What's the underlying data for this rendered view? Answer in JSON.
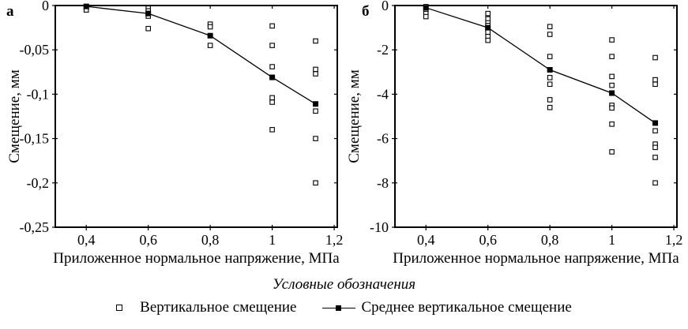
{
  "colors": {
    "foreground": "#000000",
    "background": "#ffffff"
  },
  "legend": {
    "title": "Условные обозначения",
    "items": [
      {
        "marker": "open-square",
        "label": "Вертикальное смещение"
      },
      {
        "marker": "line-filled-square",
        "label": "Среднее вертикальное смещение"
      }
    ]
  },
  "chart_data": [
    {
      "type": "scatter",
      "panel_label": "а",
      "xlabel": "Приложенное нормальное напряжение, МПа",
      "ylabel": "Смещение, мм",
      "xlim": [
        0.3,
        1.21
      ],
      "ylim": [
        -0.25,
        0
      ],
      "grid": false,
      "x_ticks": {
        "values": [
          0.4,
          0.6,
          0.8,
          1,
          1.2
        ],
        "labels": [
          "0,4",
          "0,6",
          "0,8",
          "1",
          "1,2"
        ]
      },
      "y_ticks": {
        "values": [
          0,
          -0.05,
          -0.1,
          -0.15,
          -0.2,
          -0.25
        ],
        "labels": [
          "0",
          "-0,05",
          "-0,1",
          "-0,15",
          "-0,2",
          "-0,25"
        ]
      },
      "series": [
        {
          "name": "Вертикальное смещение",
          "kind": "scatter",
          "marker": "open-square",
          "points": [
            [
              0.4,
              -0.003
            ],
            [
              0.4,
              -0.005
            ],
            [
              0.6,
              -0.003
            ],
            [
              0.6,
              -0.006
            ],
            [
              0.6,
              -0.009
            ],
            [
              0.6,
              -0.012
            ],
            [
              0.6,
              -0.026
            ],
            [
              0.8,
              -0.021
            ],
            [
              0.8,
              -0.024
            ],
            [
              0.8,
              -0.045
            ],
            [
              1,
              -0.023
            ],
            [
              1,
              -0.045
            ],
            [
              1,
              -0.069
            ],
            [
              1,
              -0.104
            ],
            [
              1,
              -0.109
            ],
            [
              1,
              -0.14
            ],
            [
              1.14,
              -0.04
            ],
            [
              1.14,
              -0.072
            ],
            [
              1.14,
              -0.077
            ],
            [
              1.14,
              -0.119
            ],
            [
              1.14,
              -0.15
            ],
            [
              1.14,
              -0.2
            ]
          ]
        },
        {
          "name": "Среднее вертикальное смещение",
          "kind": "line",
          "marker": "filled-square",
          "points": [
            [
              0.4,
              -0.001
            ],
            [
              0.6,
              -0.009
            ],
            [
              0.8,
              -0.034
            ],
            [
              1,
              -0.081
            ],
            [
              1.14,
              -0.111
            ]
          ]
        }
      ]
    },
    {
      "type": "scatter",
      "panel_label": "б",
      "xlabel": "Приложенное нормальное напряжение, МПа",
      "ylabel": "Смещение, мм",
      "xlim": [
        0.3,
        1.21
      ],
      "ylim": [
        -10,
        0
      ],
      "grid": false,
      "x_ticks": {
        "values": [
          0.4,
          0.6,
          0.8,
          1,
          1.2
        ],
        "labels": [
          "0,4",
          "0,6",
          "0,8",
          "1",
          "1,2"
        ]
      },
      "y_ticks": {
        "values": [
          0,
          -2,
          -4,
          -6,
          -8,
          -10
        ],
        "labels": [
          "0",
          "-2",
          "-4",
          "-6",
          "-8",
          "-10"
        ]
      },
      "series": [
        {
          "name": "Вертикальное смещение",
          "kind": "scatter",
          "marker": "open-square",
          "points": [
            [
              0.4,
              -0.05
            ],
            [
              0.4,
              -0.15
            ],
            [
              0.4,
              -0.25
            ],
            [
              0.4,
              -0.36
            ],
            [
              0.4,
              -0.5
            ],
            [
              0.6,
              -0.36
            ],
            [
              0.6,
              -0.6
            ],
            [
              0.6,
              -0.78
            ],
            [
              0.6,
              -0.9
            ],
            [
              0.6,
              -1.1
            ],
            [
              0.6,
              -1.2
            ],
            [
              0.6,
              -1.4
            ],
            [
              0.6,
              -1.57
            ],
            [
              0.8,
              -0.95
            ],
            [
              0.8,
              -1.3
            ],
            [
              0.8,
              -2.3
            ],
            [
              0.8,
              -3.25
            ],
            [
              0.8,
              -3.55
            ],
            [
              0.8,
              -4.25
            ],
            [
              0.8,
              -4.6
            ],
            [
              1,
              -1.55
            ],
            [
              1,
              -2.3
            ],
            [
              1,
              -3.2
            ],
            [
              1,
              -3.6
            ],
            [
              1,
              -4.5
            ],
            [
              1,
              -4.62
            ],
            [
              1,
              -5.35
            ],
            [
              1,
              -6.6
            ],
            [
              1.14,
              -2.35
            ],
            [
              1.14,
              -3.35
            ],
            [
              1.14,
              -3.55
            ],
            [
              1.14,
              -5.65
            ],
            [
              1.14,
              -6.25
            ],
            [
              1.14,
              -6.4
            ],
            [
              1.14,
              -6.85
            ],
            [
              1.14,
              -8
            ]
          ]
        },
        {
          "name": "Среднее вертикальное смещение",
          "kind": "line",
          "marker": "filled-square",
          "points": [
            [
              0.4,
              -0.1
            ],
            [
              0.6,
              -1.0
            ],
            [
              0.8,
              -2.9
            ],
            [
              1,
              -3.95
            ],
            [
              1.14,
              -5.3
            ]
          ]
        }
      ]
    }
  ]
}
